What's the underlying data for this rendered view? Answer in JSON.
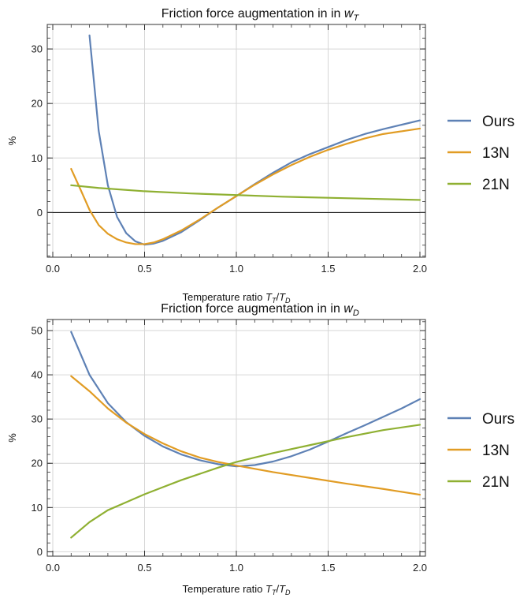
{
  "chart_data": [
    {
      "type": "line",
      "title": "Friction force augmentation in in ",
      "title_var": "w",
      "title_sub": "T",
      "xlabel": "Temperature ratio ",
      "xlabel_num": "T",
      "xlabel_num_sub": "T",
      "xlabel_sep": "/",
      "xlabel_den": "T",
      "xlabel_den_sub": "D",
      "ylabel": "%",
      "xlim": [
        -0.03,
        2.03
      ],
      "ylim": [
        -8.2,
        34.5
      ],
      "xticks": [
        0.0,
        0.5,
        1.0,
        1.5,
        2.0
      ],
      "xtick_labels": [
        "0.0",
        "0.5",
        "1.0",
        "1.5",
        "2.0"
      ],
      "yticks": [
        0,
        10,
        20,
        30
      ],
      "ytick_labels": [
        "0",
        "10",
        "20",
        "30"
      ],
      "zero_line": true,
      "grid": true,
      "legend": "right",
      "series": [
        {
          "name": "Ours",
          "color": "#5e81b5",
          "x": [
            0.2,
            0.25,
            0.3,
            0.35,
            0.4,
            0.45,
            0.5,
            0.55,
            0.6,
            0.7,
            0.8,
            0.9,
            1.0,
            1.1,
            1.2,
            1.3,
            1.4,
            1.5,
            1.6,
            1.7,
            1.8,
            1.9,
            2.0
          ],
          "y": [
            32.5,
            15.0,
            5.0,
            -0.8,
            -3.8,
            -5.3,
            -5.9,
            -5.7,
            -5.2,
            -3.6,
            -1.4,
            0.9,
            3.0,
            5.2,
            7.3,
            9.2,
            10.7,
            12.0,
            13.3,
            14.4,
            15.3,
            16.1,
            16.9
          ]
        },
        {
          "name": "13N",
          "color": "#e19c24",
          "x": [
            0.1,
            0.15,
            0.2,
            0.25,
            0.3,
            0.35,
            0.4,
            0.45,
            0.5,
            0.55,
            0.6,
            0.7,
            0.8,
            0.9,
            1.0,
            1.1,
            1.2,
            1.3,
            1.4,
            1.5,
            1.6,
            1.7,
            1.8,
            1.9,
            2.0
          ],
          "y": [
            8.0,
            4.3,
            0.5,
            -2.3,
            -3.9,
            -4.9,
            -5.5,
            -5.8,
            -5.8,
            -5.5,
            -4.9,
            -3.3,
            -1.3,
            0.9,
            3.0,
            5.1,
            7.0,
            8.7,
            10.2,
            11.5,
            12.6,
            13.6,
            14.4,
            14.9,
            15.4
          ]
        },
        {
          "name": "21N",
          "color": "#8fb032",
          "x": [
            0.1,
            0.25,
            0.5,
            0.75,
            1.0,
            1.25,
            1.5,
            1.75,
            2.0
          ],
          "y": [
            5.0,
            4.5,
            3.9,
            3.5,
            3.2,
            2.9,
            2.7,
            2.5,
            2.3
          ]
        }
      ]
    },
    {
      "type": "line",
      "title": "Friction force augmentation in in ",
      "title_var": "w",
      "title_sub": "D",
      "xlabel": "Temperature ratio ",
      "xlabel_num": "T",
      "xlabel_num_sub": "T",
      "xlabel_sep": "/",
      "xlabel_den": "T",
      "xlabel_den_sub": "D",
      "ylabel": "%",
      "xlim": [
        -0.03,
        2.03
      ],
      "ylim": [
        -1.0,
        52.5
      ],
      "xticks": [
        0.0,
        0.5,
        1.0,
        1.5,
        2.0
      ],
      "xtick_labels": [
        "0.0",
        "0.5",
        "1.0",
        "1.5",
        "2.0"
      ],
      "yticks": [
        0,
        10,
        20,
        30,
        40,
        50
      ],
      "ytick_labels": [
        "0",
        "10",
        "20",
        "30",
        "40",
        "50"
      ],
      "zero_line": false,
      "grid": true,
      "legend": "right",
      "series": [
        {
          "name": "Ours",
          "color": "#5e81b5",
          "x": [
            0.1,
            0.2,
            0.3,
            0.4,
            0.5,
            0.6,
            0.7,
            0.8,
            0.9,
            1.0,
            1.1,
            1.2,
            1.3,
            1.4,
            1.5,
            1.6,
            1.7,
            1.8,
            1.9,
            2.0
          ],
          "y": [
            49.7,
            40.0,
            33.6,
            29.3,
            26.2,
            23.8,
            22.0,
            20.7,
            19.8,
            19.3,
            19.6,
            20.4,
            21.6,
            23.1,
            24.9,
            26.8,
            28.6,
            30.5,
            32.4,
            34.5
          ]
        },
        {
          "name": "13N",
          "color": "#e19c24",
          "x": [
            0.1,
            0.2,
            0.3,
            0.4,
            0.5,
            0.6,
            0.7,
            0.8,
            0.9,
            1.0,
            1.2,
            1.4,
            1.6,
            1.8,
            2.0
          ],
          "y": [
            39.7,
            36.3,
            32.4,
            29.2,
            26.6,
            24.5,
            22.7,
            21.3,
            20.3,
            19.5,
            18.0,
            16.7,
            15.4,
            14.2,
            12.9
          ]
        },
        {
          "name": "21N",
          "color": "#8fb032",
          "x": [
            0.1,
            0.2,
            0.3,
            0.4,
            0.5,
            0.6,
            0.7,
            0.8,
            0.9,
            1.0,
            1.2,
            1.4,
            1.6,
            1.8,
            2.0
          ],
          "y": [
            3.2,
            6.7,
            9.4,
            11.2,
            13.0,
            14.6,
            16.2,
            17.6,
            19.0,
            20.3,
            22.3,
            24.1,
            25.9,
            27.5,
            28.7
          ]
        }
      ]
    }
  ]
}
